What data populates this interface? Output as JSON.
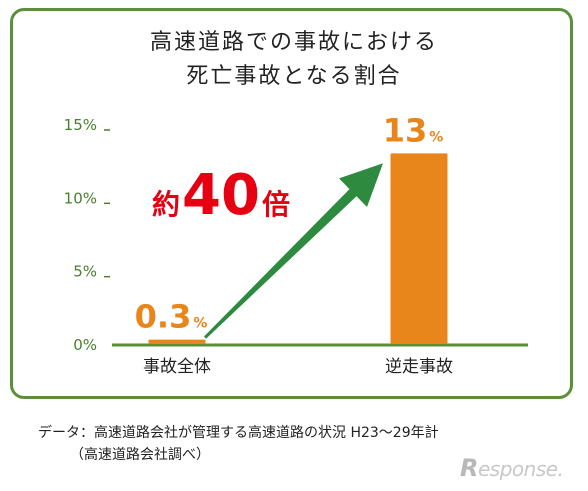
{
  "chart_data": {
    "type": "bar",
    "title_lines": [
      "高速道路での事故における",
      "死亡事故となる割合"
    ],
    "categories": [
      "事故全体",
      "逆走事故"
    ],
    "values": [
      0.3,
      13
    ],
    "value_labels": [
      {
        "number": "0.3",
        "unit": "%"
      },
      {
        "number": "13",
        "unit": "%"
      }
    ],
    "ylim": [
      0,
      15
    ],
    "yticks": [
      0,
      5,
      10,
      15
    ],
    "ytick_labels": [
      "0%",
      "5%",
      "10%",
      "15%"
    ],
    "annotation": {
      "prefix": "約",
      "number": "40",
      "suffix": "倍"
    },
    "grid": false,
    "legend": "none"
  },
  "colors": {
    "bar": "#e8861c",
    "axis_text": "#4a7f2e",
    "frame": "#5b8f3a",
    "arrow": "#2e8a3e",
    "annotation": "#e60012"
  },
  "source": {
    "line1": "データ：高速道路会社が管理する高速道路の状況 H23～29年計",
    "line2": "（高速道路会社調べ）"
  },
  "watermark": {
    "r": "R",
    "rest": "esponse."
  }
}
